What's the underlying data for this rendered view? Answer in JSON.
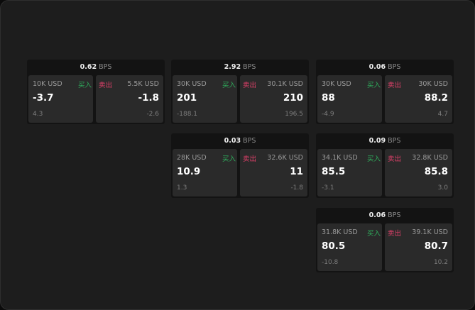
{
  "unit_label": "BPS",
  "buy_label": "买入",
  "sell_label": "卖出",
  "colors": {
    "buy": "#2fae5c",
    "sell": "#e0406a"
  },
  "quotes": [
    {
      "spread": "0.62",
      "buy": {
        "size": "10K USD",
        "price": "-3.7",
        "change": "4.3"
      },
      "sell": {
        "size": "5.5K USD",
        "price": "-1.8",
        "change": "-2.6"
      }
    },
    {
      "spread": "2.92",
      "buy": {
        "size": "30K USD",
        "price": "201",
        "change": "-188.1"
      },
      "sell": {
        "size": "30.1K USD",
        "price": "210",
        "change": "196.5"
      }
    },
    {
      "spread": "0.06",
      "buy": {
        "size": "30K USD",
        "price": "88",
        "change": "-4.9"
      },
      "sell": {
        "size": "30K USD",
        "price": "88.2",
        "change": "4.7"
      }
    },
    {
      "spread": "0.03",
      "buy": {
        "size": "28K USD",
        "price": "10.9",
        "change": "1.3"
      },
      "sell": {
        "size": "32.6K USD",
        "price": "11",
        "change": "-1.8"
      }
    },
    {
      "spread": "0.09",
      "buy": {
        "size": "34.1K USD",
        "price": "85.5",
        "change": "-3.1"
      },
      "sell": {
        "size": "32.8K USD",
        "price": "85.8",
        "change": "3.0"
      }
    },
    {
      "spread": "0.06",
      "buy": {
        "size": "31.8K USD",
        "price": "80.5",
        "change": "-10.8"
      },
      "sell": {
        "size": "39.1K USD",
        "price": "80.7",
        "change": "10.2"
      }
    }
  ]
}
